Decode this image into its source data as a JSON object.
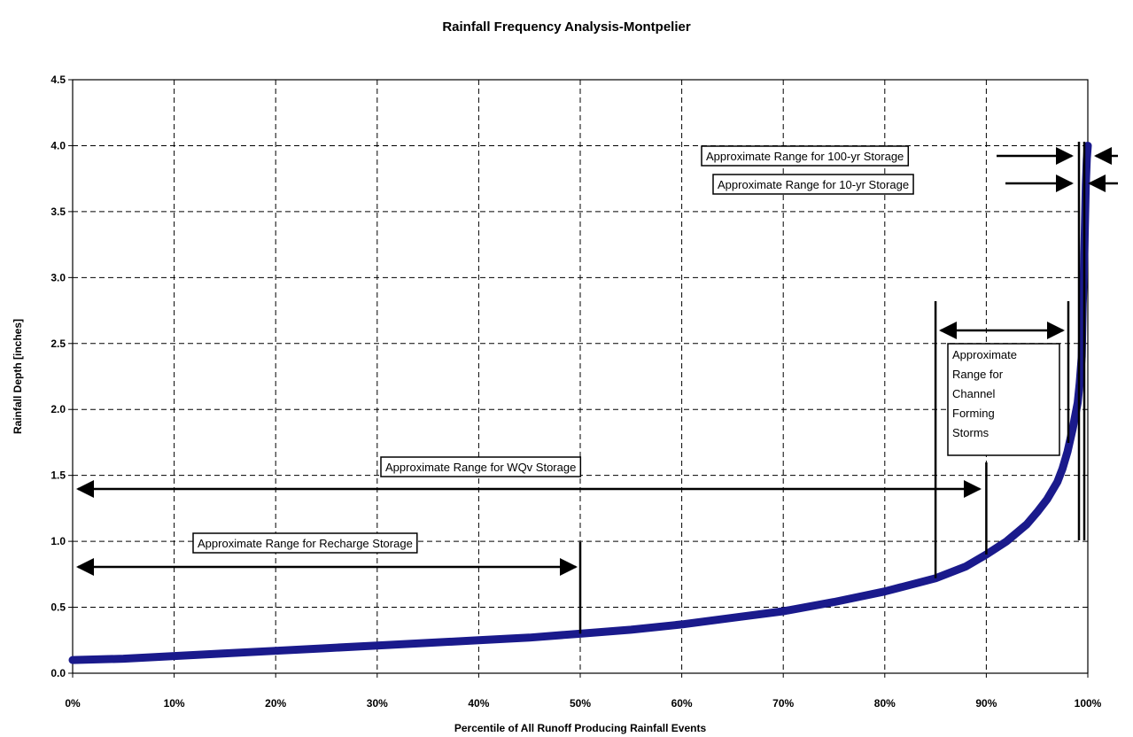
{
  "chart_data": {
    "type": "scatter",
    "title": "Rainfall Frequency Analysis-Montpelier",
    "xlabel": "Percentile of All Runoff Producing Rainfall Events",
    "ylabel": "Rainfall Depth [inches]",
    "xlim": [
      0,
      100
    ],
    "ylim": [
      0,
      4.5
    ],
    "grid": true,
    "x_ticks": [
      "0%",
      "10%",
      "20%",
      "30%",
      "40%",
      "50%",
      "60%",
      "70%",
      "80%",
      "90%",
      "100%"
    ],
    "y_ticks": [
      "0.0",
      "0.5",
      "1.0",
      "1.5",
      "2.0",
      "2.5",
      "3.0",
      "3.5",
      "4.0",
      "4.5"
    ],
    "series": [
      {
        "color": "#1a1a8c",
        "x": [
          0,
          5,
          10,
          15,
          20,
          25,
          30,
          35,
          40,
          45,
          50,
          55,
          60,
          65,
          70,
          75,
          80,
          85,
          88,
          90,
          92,
          94,
          95,
          96,
          97,
          97.5,
          98,
          98.5,
          99,
          99.2,
          99.4,
          99.5,
          99.6,
          99.7,
          99.8,
          99.9,
          100
        ],
        "y": [
          0.1,
          0.11,
          0.13,
          0.15,
          0.17,
          0.19,
          0.21,
          0.23,
          0.25,
          0.27,
          0.3,
          0.33,
          0.37,
          0.42,
          0.47,
          0.54,
          0.62,
          0.72,
          0.81,
          0.9,
          1.0,
          1.13,
          1.22,
          1.32,
          1.45,
          1.55,
          1.68,
          1.85,
          2.05,
          2.2,
          2.4,
          2.8,
          3.0,
          3.35,
          3.7,
          3.9,
          4.0
        ]
      }
    ],
    "annotations": {
      "a100yr": "Approximate Range for 100-yr Storage",
      "a10yr": "Approximate Range for 10-yr Storage",
      "channel": [
        "Approximate",
        "Range for",
        "Channel",
        "Forming",
        "Storms"
      ],
      "wqv": "Approximate Range for WQv Storage",
      "recharge": "Approximate Range for Recharge Storage"
    }
  }
}
